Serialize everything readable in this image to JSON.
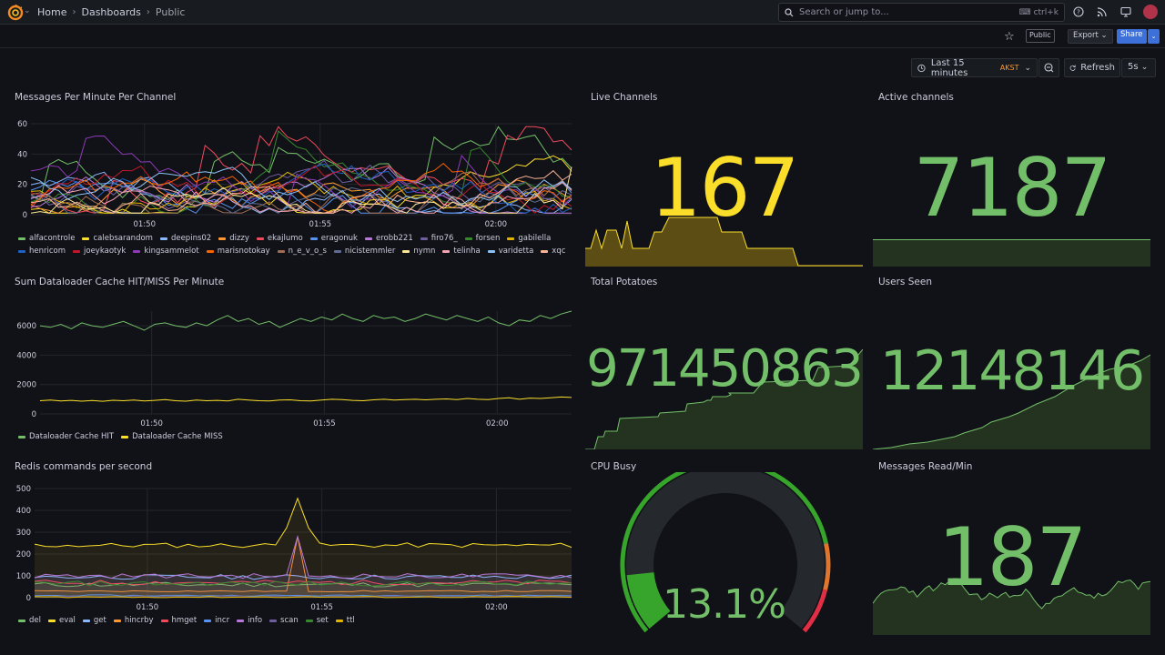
{
  "nav": {
    "breadcrumbs": [
      "Home",
      "Dashboards",
      "Public"
    ],
    "search_placeholder": "Search or jump to...",
    "search_shortcut": "ctrl+k"
  },
  "toolbar": {
    "public_badge": "Public",
    "export_label": "Export",
    "share_label": "Share",
    "time_range": "Last 15 minutes",
    "timezone": "AKST",
    "refresh_label": "Refresh",
    "refresh_interval": "5s"
  },
  "colors": {
    "green": "#73bf69",
    "yellow": "#fade2a",
    "blue": "#3d71d9",
    "orange": "#ff9830",
    "red": "#f2495c"
  },
  "panels": {
    "messages_per_minute": {
      "title": "Messages Per Minute Per Channel"
    },
    "live_channels": {
      "title": "Live Channels",
      "value": "167",
      "color": "#fade2a"
    },
    "active_channels": {
      "title": "Active channels",
      "value": "7187",
      "color": "#73bf69"
    },
    "cache_hit_miss": {
      "title": "Sum Dataloader Cache HIT/MISS Per Minute"
    },
    "total_potatoes": {
      "title": "Total Potatoes",
      "value": "971450863",
      "color": "#73bf69"
    },
    "users_seen": {
      "title": "Users Seen",
      "value": "12148146",
      "color": "#73bf69"
    },
    "redis_commands": {
      "title": "Redis commands per second"
    },
    "cpu_busy": {
      "title": "CPU Busy",
      "value": "13.1%",
      "fraction": 0.131,
      "color": "#73bf69"
    },
    "messages_read": {
      "title": "Messages Read/Min",
      "value": "187",
      "color": "#73bf69"
    }
  },
  "chart_data": [
    {
      "type": "line",
      "title": "Messages Per Minute Per Channel",
      "x_ticks": [
        "01:50",
        "01:55",
        "02:00"
      ],
      "y_ticks": [
        0,
        20,
        40,
        60
      ],
      "ylim": [
        0,
        60
      ],
      "legend": [
        "alfacontrole",
        "calebsarandom",
        "deepins02",
        "dizzy",
        "ekajlumo",
        "eragonuk",
        "erobb221",
        "firo76_",
        "forsen",
        "gabilella",
        "henricom",
        "joeykaotyk",
        "kingsammelot",
        "marisnotokay",
        "n_e_v_o_s",
        "nicistemmler",
        "nymn",
        "telinha",
        "varidetta",
        "xqc"
      ],
      "legend_colors": [
        "#73bf69",
        "#fade2a",
        "#8ab8ff",
        "#ff9830",
        "#f2495c",
        "#5794f2",
        "#b877d9",
        "#705da0",
        "#37872d",
        "#e0b400",
        "#1f60c4",
        "#c4162a",
        "#8f3bb8",
        "#fa6400",
        "#a16d52",
        "#5f6b91",
        "#fde898",
        "#f5a3b1",
        "#8ac2f5",
        "#fbb496"
      ],
      "legend_position": "bottom"
    },
    {
      "type": "line",
      "title": "Sum Dataloader Cache HIT/MISS Per Minute",
      "x_ticks": [
        "01:50",
        "01:55",
        "02:00"
      ],
      "y_ticks": [
        0,
        2000,
        4000,
        6000
      ],
      "ylim": [
        0,
        7000
      ],
      "series": [
        {
          "name": "Dataloader Cache HIT",
          "color": "#73bf69",
          "values": [
            6000,
            5900,
            6100,
            5800,
            6200,
            6000,
            5900,
            6100,
            6300,
            6000,
            5700,
            6100,
            6200,
            6000,
            5900,
            6200,
            6000,
            6400,
            6700,
            6300,
            6500,
            6100,
            6300,
            5900,
            6200,
            6500,
            6300,
            6600,
            6400,
            6800,
            6500,
            6300,
            6700,
            6500,
            6600,
            6300,
            6500,
            6800,
            6600,
            6400,
            6700,
            6500,
            6300,
            6600,
            6200,
            6000,
            6400,
            6300,
            6700,
            6500,
            6800,
            7000
          ]
        },
        {
          "name": "Dataloader Cache MISS",
          "color": "#fade2a",
          "values": [
            900,
            950,
            880,
            920,
            870,
            910,
            860,
            930,
            900,
            950,
            880,
            920,
            980,
            900,
            870,
            940,
            900,
            920,
            880,
            1000,
            950,
            900,
            880,
            940,
            960,
            900,
            880,
            950,
            1000,
            970,
            920,
            900,
            960,
            1000,
            940,
            980,
            1000,
            960,
            1000,
            1020,
            980,
            1050,
            1000,
            970,
            1050,
            1100,
            1000,
            1080,
            1050,
            1100,
            1150,
            1120
          ]
        }
      ],
      "legend_position": "bottom"
    },
    {
      "type": "area",
      "title": "Redis commands per second",
      "x_ticks": [
        "01:50",
        "01:55",
        "02:00"
      ],
      "y_ticks": [
        0,
        100,
        200,
        300,
        400,
        500
      ],
      "ylim": [
        0,
        500
      ],
      "series": [
        {
          "name": "del",
          "color": "#73bf69"
        },
        {
          "name": "eval",
          "color": "#fade2a"
        },
        {
          "name": "get",
          "color": "#8ab8ff"
        },
        {
          "name": "hincrby",
          "color": "#ff9830"
        },
        {
          "name": "hmget",
          "color": "#f2495c"
        },
        {
          "name": "incr",
          "color": "#5794f2"
        },
        {
          "name": "info",
          "color": "#b877d9"
        },
        {
          "name": "scan",
          "color": "#705da0"
        },
        {
          "name": "set",
          "color": "#37872d"
        },
        {
          "name": "ttl",
          "color": "#e0b400"
        }
      ],
      "legend_position": "bottom"
    }
  ]
}
